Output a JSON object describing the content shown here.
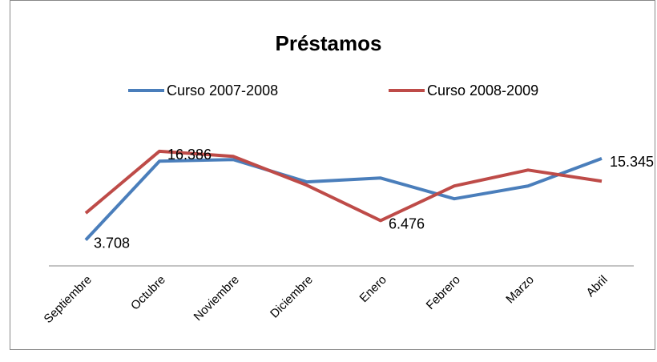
{
  "chart_data": {
    "type": "line",
    "title": "Préstamos",
    "categories": [
      "Septiembre",
      "Octubre",
      "Noviembre",
      "Diciembre",
      "Enero",
      "Febrero",
      "Marzo",
      "Abril"
    ],
    "series": [
      {
        "name": "Curso 2007-2008",
        "color": "#4a7ebb",
        "values": [
          3708,
          14960,
          15200,
          12000,
          12560,
          9590,
          11420,
          15345
        ],
        "value_labels": [
          "3.708",
          null,
          null,
          null,
          null,
          null,
          null,
          "15.345"
        ]
      },
      {
        "name": "Curso 2008-2009",
        "color": "#be4b48",
        "values": [
          7540,
          16386,
          15650,
          11530,
          6476,
          11420,
          13700,
          12100
        ],
        "value_labels": [
          null,
          "16.386",
          null,
          null,
          "6.476",
          null,
          null,
          null
        ]
      }
    ],
    "ylim": [
      0,
      19000
    ],
    "legend": "top"
  }
}
